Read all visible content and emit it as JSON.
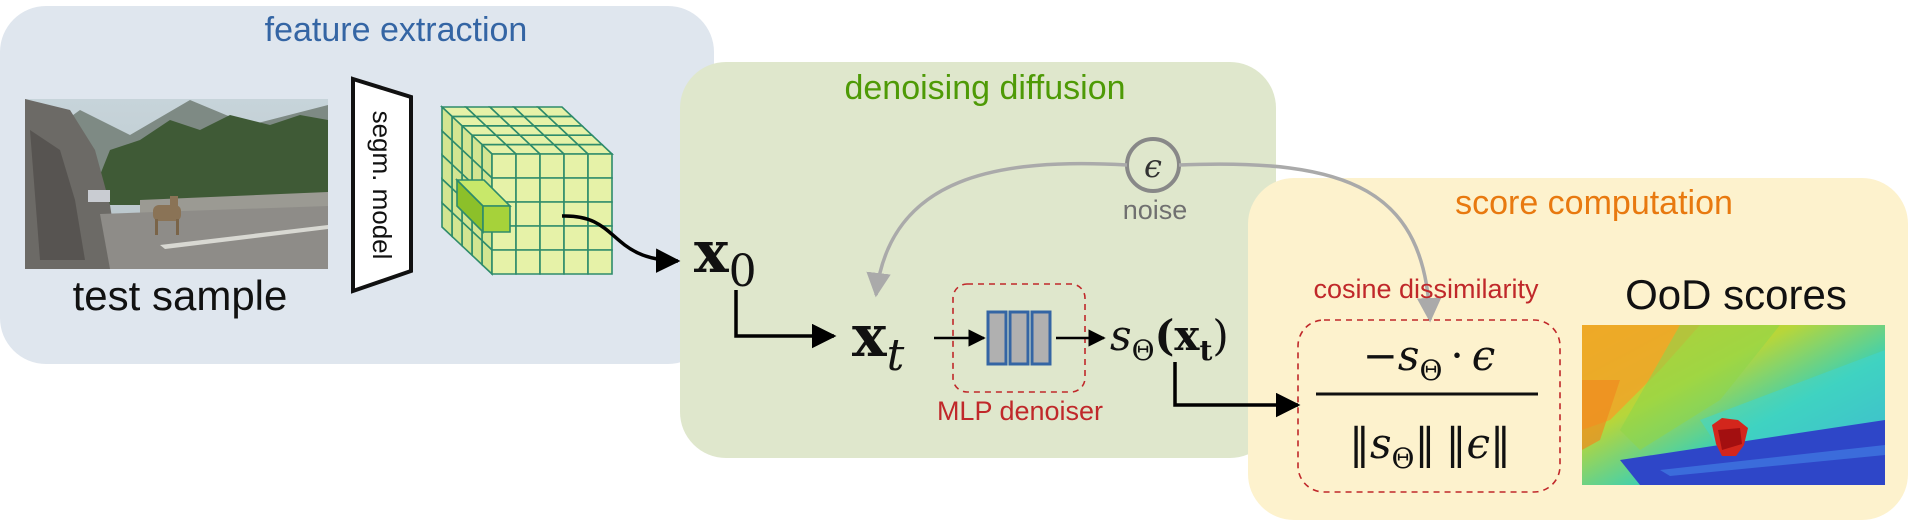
{
  "panels": {
    "feature_extraction": {
      "title": "feature extraction",
      "color": "#3465a4",
      "bg": "#dfe6ee"
    },
    "denoising_diffusion": {
      "title": "denoising diffusion",
      "color": "#4e9a06",
      "bg": "#dfe7cc"
    },
    "score_computation": {
      "title": "score computation",
      "color": "#e8790f",
      "bg": "#fdf2cd"
    }
  },
  "labels": {
    "test_sample": "test sample",
    "segm_model": "segm. model",
    "noise": "noise",
    "mlp_denoiser": "MLP denoiser",
    "cosine_dissimilarity": "cosine dissimilarity",
    "ood_scores": "OoD scores"
  },
  "math": {
    "x0_base": "x",
    "x0_sub": "0",
    "xt_base": "x",
    "xt_sub": "t",
    "eps": "ϵ",
    "s_theta": "s",
    "theta_sub": "Θ",
    "s_arg": "(x",
    "s_arg_sub": "t",
    "s_arg_close": ")",
    "num_minus": "−",
    "num_s": "s",
    "num_sub": "Θ",
    "num_dot": "·",
    "num_eps": "ϵ",
    "den_bars_l": "‖",
    "den_s": "s",
    "den_sub": "Θ",
    "den_bars_r": "‖",
    "den_bars_l2": "‖",
    "den_eps": "ϵ",
    "den_bars_r2": "‖"
  },
  "colors": {
    "dashed_box": "#c0282a",
    "noise_arrow": "#aaaaaa",
    "noise_circle": "#888888",
    "mlp_fill": "#b0b0b0",
    "mlp_stroke": "#3465a4",
    "cube_fill": "#e6f2a8",
    "cube_stroke": "#2e8b6b",
    "cube_highlight": "#a6d23a"
  }
}
